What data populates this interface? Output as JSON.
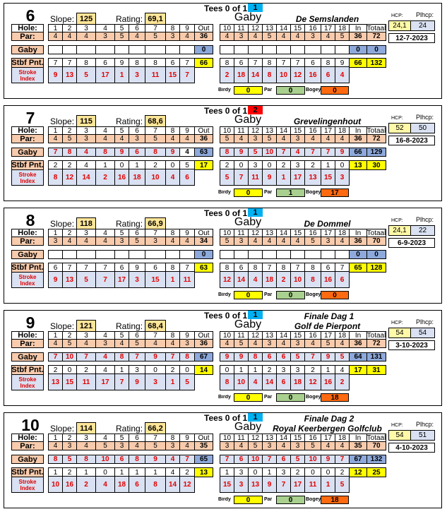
{
  "labels": {
    "hole": "Hole:",
    "par": "Par:",
    "player": "Gaby",
    "stbf": "Stbf Pnt.",
    "si1": "Stroke",
    "si2": "Index",
    "out": "Out",
    "in": "In",
    "total": "Totaal",
    "slope": "Slope:",
    "rating": "Rating:",
    "hcp": "HCP:",
    "plhcp": "Plhcp:",
    "tees": "Tees 0 of 1",
    "birdie": "Birdy",
    "parc": "Par",
    "bogey": "Bogey"
  },
  "colors": {
    "par_row": "#F8CBAD",
    "score_bg": "#D9E1F2",
    "total_bg": "#8EA9DB",
    "stbf_total": "#FFFF00",
    "slope_box": "#FFE699",
    "hcp_box": "#FFF9A8",
    "tee_blue": "#00B0F0",
    "tee_red": "#FF0000",
    "birdie": "#FFFF00",
    "par": "#A9D08E",
    "bogey": "#FF6A10"
  },
  "cards": [
    {
      "num": "6",
      "slope": "125",
      "rating": "69,1",
      "tee": "1",
      "tee_color": "#00B0F0",
      "event": "",
      "name": "Gaby",
      "course": "De Semslanden",
      "hcp": "24,1",
      "plhcp": "24",
      "date": "12-7-2023",
      "holes": [
        "1",
        "2",
        "3",
        "4",
        "5",
        "6",
        "7",
        "8",
        "9",
        "10",
        "11",
        "12",
        "13",
        "14",
        "15",
        "16",
        "17",
        "18"
      ],
      "par": [
        "4",
        "4",
        "4",
        "3",
        "5",
        "4",
        "5",
        "3",
        "4",
        "4",
        "3",
        "4",
        "5",
        "4",
        "4",
        "3",
        "4",
        "5"
      ],
      "par_out": "36",
      "par_in": "36",
      "par_total": "72",
      "score": [
        "",
        "",
        "",
        "",
        "",
        "",
        "",
        "",
        "",
        "",
        "",
        "",
        "",
        "",
        "",
        "",
        "",
        ""
      ],
      "score_out": "0",
      "score_in": "0",
      "score_total": "0",
      "stbf": [
        "7",
        "7",
        "8",
        "6",
        "9",
        "8",
        "8",
        "6",
        "7",
        "8",
        "6",
        "7",
        "8",
        "7",
        "7",
        "6",
        "8",
        "9"
      ],
      "stbf_out": "66",
      "stbf_in": "66",
      "stbf_total": "132",
      "si": [
        "9",
        "13",
        "5",
        "17",
        "1",
        "3",
        "11",
        "15",
        "7",
        "2",
        "18",
        "14",
        "8",
        "10",
        "12",
        "16",
        "6",
        "4"
      ],
      "birdies": "0",
      "pars": "0",
      "bogeys": "0"
    },
    {
      "num": "7",
      "slope": "115",
      "rating": "68,6",
      "tee": "2",
      "tee_color": "#FF0000",
      "event": "",
      "name": "Gaby",
      "course": "Grevelingenhout",
      "hcp": "52",
      "plhcp": "50",
      "date": "16-8-2023",
      "holes": [
        "1",
        "2",
        "3",
        "4",
        "5",
        "6",
        "7",
        "8",
        "9",
        "10",
        "11",
        "12",
        "13",
        "14",
        "15",
        "16",
        "17",
        "18"
      ],
      "par": [
        "4",
        "5",
        "3",
        "4",
        "4",
        "3",
        "5",
        "4",
        "4",
        "5",
        "4",
        "3",
        "5",
        "4",
        "3",
        "4",
        "4",
        "4"
      ],
      "par_out": "36",
      "par_in": "36",
      "par_total": "72",
      "score": [
        "7",
        "8",
        "4",
        "8",
        "9",
        "6",
        "8",
        "9",
        "4",
        "8",
        "9",
        "5",
        "10",
        "7",
        "4",
        "7",
        "7",
        "9"
      ],
      "score_out": "63",
      "score_in": "66",
      "score_total": "129",
      "stbf": [
        "2",
        "2",
        "4",
        "1",
        "0",
        "1",
        "2",
        "0",
        "5",
        "2",
        "0",
        "3",
        "0",
        "2",
        "3",
        "2",
        "1",
        "0"
      ],
      "stbf_out": "17",
      "stbf_in": "13",
      "stbf_total": "30",
      "si": [
        "8",
        "12",
        "14",
        "2",
        "16",
        "18",
        "10",
        "4",
        "6",
        "5",
        "7",
        "11",
        "9",
        "1",
        "17",
        "13",
        "15",
        "3"
      ],
      "birdies": "0",
      "pars": "1",
      "bogeys": "17"
    },
    {
      "num": "8",
      "slope": "118",
      "rating": "66,9",
      "tee": "1",
      "tee_color": "#00B0F0",
      "event": "",
      "name": "Gaby",
      "course": "De Dommel",
      "hcp": "24,1",
      "plhcp": "22",
      "date": "6-9-2023",
      "holes": [
        "1",
        "2",
        "3",
        "4",
        "5",
        "6",
        "7",
        "8",
        "9",
        "10",
        "11",
        "12",
        "13",
        "14",
        "15",
        "16",
        "17",
        "18"
      ],
      "par": [
        "3",
        "4",
        "4",
        "4",
        "3",
        "5",
        "3",
        "4",
        "4",
        "5",
        "3",
        "4",
        "4",
        "4",
        "4",
        "5",
        "3",
        "4"
      ],
      "par_out": "34",
      "par_in": "36",
      "par_total": "70",
      "score": [
        "",
        "",
        "",
        "",
        "",
        "",
        "",
        "",
        "",
        "",
        "",
        "",
        "",
        "",
        "",
        "",
        "",
        ""
      ],
      "score_out": "0",
      "score_in": "0",
      "score_total": "0",
      "stbf": [
        "6",
        "7",
        "7",
        "7",
        "6",
        "9",
        "6",
        "8",
        "7",
        "8",
        "6",
        "8",
        "7",
        "8",
        "7",
        "8",
        "6",
        "7"
      ],
      "stbf_out": "63",
      "stbf_in": "65",
      "stbf_total": "128",
      "si": [
        "9",
        "13",
        "5",
        "7",
        "17",
        "3",
        "15",
        "1",
        "11",
        "12",
        "14",
        "4",
        "18",
        "2",
        "10",
        "8",
        "16",
        "6"
      ],
      "birdies": "0",
      "pars": "0",
      "bogeys": "0"
    },
    {
      "num": "9",
      "slope": "121",
      "rating": "68,4",
      "tee": "1",
      "tee_color": "#00B0F0",
      "event": "Finale Dag 1",
      "name": "Gaby",
      "course": "Golf de Pierpont",
      "hcp": "54",
      "plhcp": "54",
      "date": "3-10-2023",
      "holes": [
        "1",
        "2",
        "3",
        "4",
        "5",
        "6",
        "7",
        "8",
        "9",
        "10",
        "11",
        "12",
        "13",
        "14",
        "15",
        "16",
        "17",
        "18"
      ],
      "par": [
        "4",
        "5",
        "4",
        "3",
        "4",
        "5",
        "4",
        "4",
        "3",
        "4",
        "5",
        "4",
        "3",
        "4",
        "3",
        "4",
        "5",
        "4"
      ],
      "par_out": "36",
      "par_in": "36",
      "par_total": "72",
      "score": [
        "7",
        "10",
        "7",
        "4",
        "8",
        "7",
        "9",
        "7",
        "8",
        "9",
        "9",
        "8",
        "6",
        "6",
        "5",
        "7",
        "9",
        "5"
      ],
      "score_out": "67",
      "score_in": "64",
      "score_total": "131",
      "stbf": [
        "2",
        "0",
        "2",
        "4",
        "1",
        "3",
        "0",
        "2",
        "0",
        "0",
        "1",
        "1",
        "2",
        "3",
        "3",
        "2",
        "1",
        "4"
      ],
      "stbf_out": "14",
      "stbf_in": "17",
      "stbf_total": "31",
      "si": [
        "13",
        "15",
        "11",
        "17",
        "7",
        "9",
        "3",
        "1",
        "5",
        "8",
        "10",
        "4",
        "14",
        "6",
        "18",
        "12",
        "16",
        "2"
      ],
      "birdies": "0",
      "pars": "0",
      "bogeys": "18"
    },
    {
      "num": "10",
      "slope": "114",
      "rating": "66,2",
      "tee": "1",
      "tee_color": "#00B0F0",
      "event": "Finale Dag 2",
      "name": "Gaby",
      "course": "Royal Keerbergen Golfclub",
      "hcp": "54",
      "plhcp": "51",
      "date": "4-10-2023",
      "holes": [
        "1",
        "2",
        "3",
        "4",
        "5",
        "6",
        "7",
        "8",
        "9",
        "10",
        "11",
        "12",
        "13",
        "14",
        "15",
        "16",
        "17",
        "18"
      ],
      "par": [
        "4",
        "3",
        "4",
        "5",
        "3",
        "4",
        "5",
        "3",
        "4",
        "3",
        "4",
        "5",
        "3",
        "4",
        "3",
        "5",
        "4",
        "4"
      ],
      "par_out": "35",
      "par_in": "35",
      "par_total": "70",
      "score": [
        "8",
        "5",
        "8",
        "10",
        "6",
        "8",
        "9",
        "4",
        "7",
        "7",
        "6",
        "10",
        "7",
        "6",
        "5",
        "10",
        "9",
        "7"
      ],
      "score_out": "65",
      "score_in": "67",
      "score_total": "132",
      "stbf": [
        "1",
        "2",
        "1",
        "0",
        "1",
        "1",
        "1",
        "4",
        "2",
        "1",
        "3",
        "0",
        "1",
        "3",
        "2",
        "0",
        "0",
        "2"
      ],
      "stbf_out": "13",
      "stbf_in": "12",
      "stbf_total": "25",
      "si": [
        "10",
        "16",
        "2",
        "4",
        "18",
        "6",
        "8",
        "14",
        "12",
        "15",
        "3",
        "13",
        "9",
        "7",
        "17",
        "11",
        "1",
        "5"
      ],
      "birdies": "0",
      "pars": "0",
      "bogeys": "18"
    }
  ]
}
